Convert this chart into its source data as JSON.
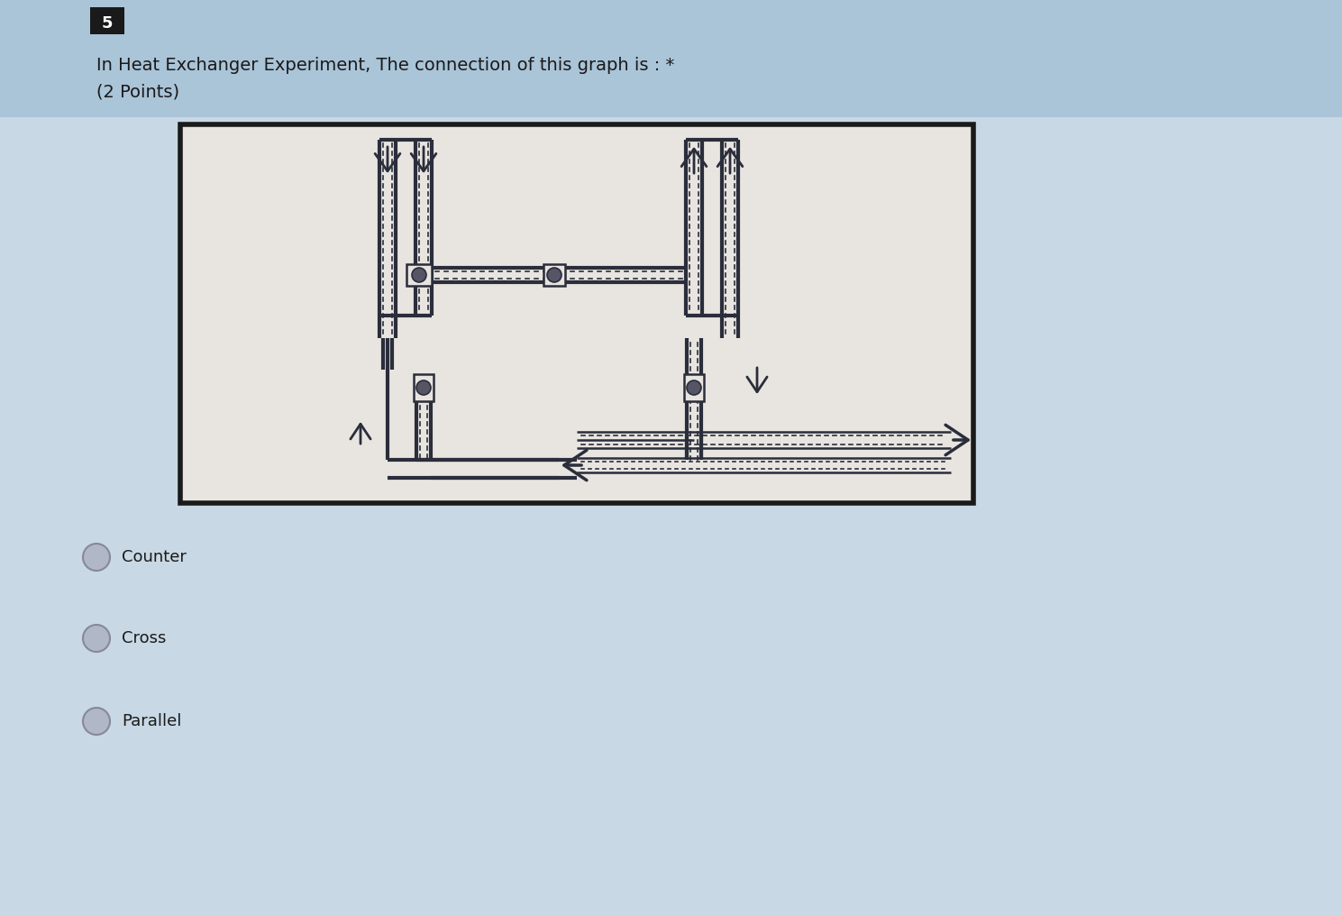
{
  "bg_color_top": "#aec6db",
  "bg_color_main": "#c8d8e4",
  "diagram_bg": "#e8e4e0",
  "title_line1": "In Heat Exchanger Experiment, The connection of this graph is : *",
  "title_line2": "(2 Points)",
  "question_num": "5",
  "options": [
    "Counter",
    "Cross",
    "Parallel"
  ],
  "title_fontsize": 14,
  "option_fontsize": 13,
  "dc": "#2a2d3a",
  "lw_outer": 3.0,
  "lw_inner": 1.8,
  "lw_dot": 1.2
}
